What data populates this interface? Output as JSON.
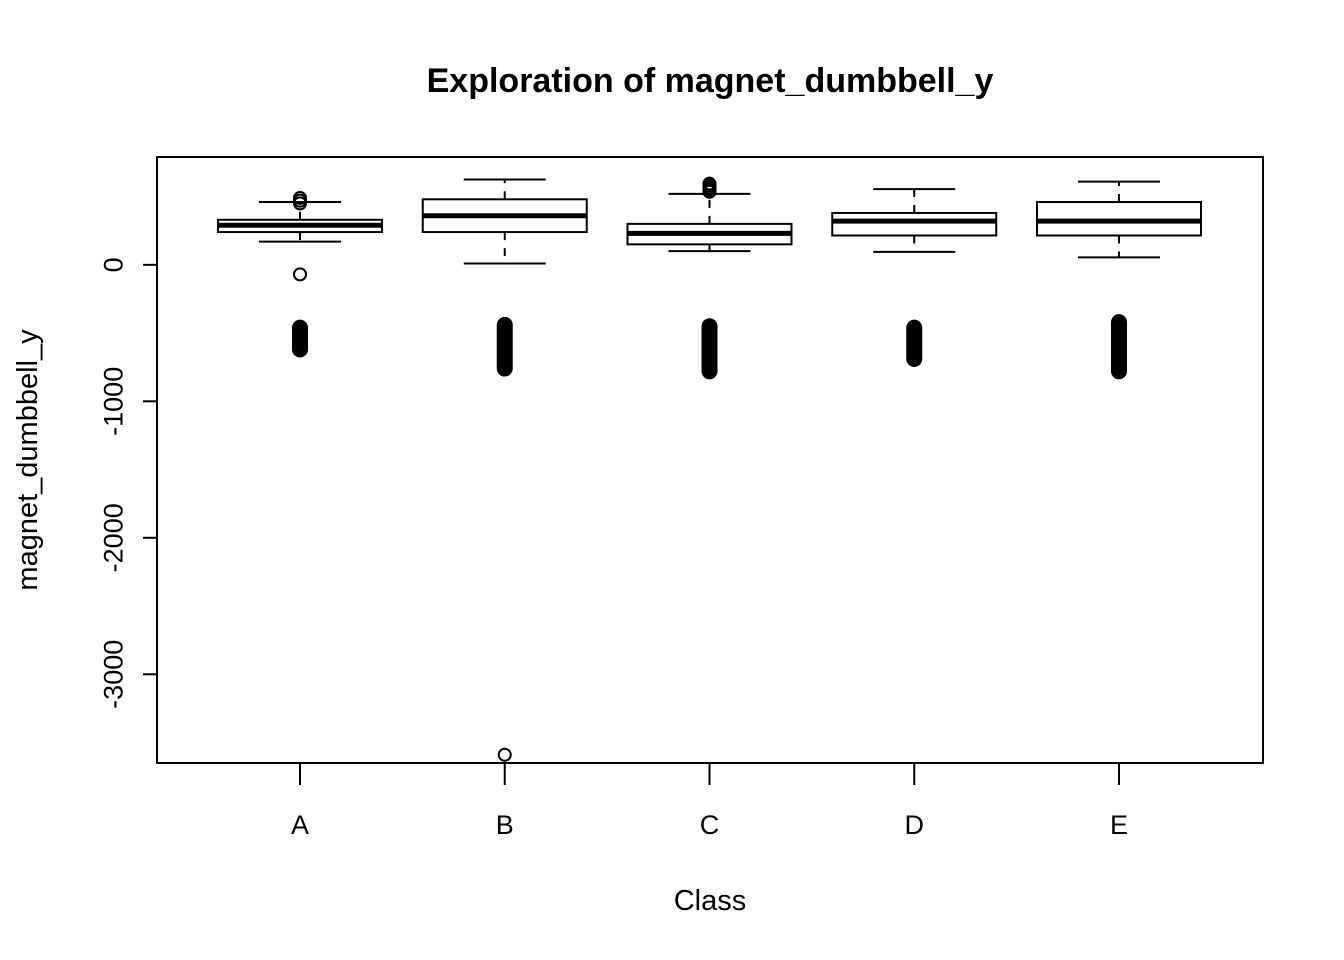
{
  "chart_data": {
    "type": "boxplot",
    "title": "Exploration of  magnet_dumbbell_y",
    "xlabel": "Class",
    "ylabel": "magnet_dumbbell_y",
    "ylim": [
      -3650,
      790
    ],
    "yticks": [
      0,
      -1000,
      -2000,
      -3000
    ],
    "categories": [
      "A",
      "B",
      "C",
      "D",
      "E"
    ],
    "series": [
      {
        "category": "A",
        "whisker_low": 170,
        "q1": 240,
        "median": 290,
        "q3": 330,
        "whisker_high": 460,
        "outliers": [
          490,
          470,
          450,
          -70
        ],
        "outlier_band": [
          -620,
          -460
        ]
      },
      {
        "category": "B",
        "whisker_low": 10,
        "q1": 240,
        "median": 360,
        "q3": 480,
        "whisker_high": 625,
        "outliers": [
          -3590
        ],
        "outlier_band": [
          -760,
          -440
        ]
      },
      {
        "category": "C",
        "whisker_low": 100,
        "q1": 150,
        "median": 230,
        "q3": 300,
        "whisker_high": 520,
        "outliers": [
          595,
          580,
          565,
          550,
          535
        ],
        "outlier_band": [
          -780,
          -450
        ]
      },
      {
        "category": "D",
        "whisker_low": 95,
        "q1": 215,
        "median": 320,
        "q3": 380,
        "whisker_high": 555,
        "outliers": [],
        "outlier_band": [
          -690,
          -460
        ]
      },
      {
        "category": "E",
        "whisker_low": 55,
        "q1": 215,
        "median": 320,
        "q3": 460,
        "whisker_high": 610,
        "outliers": [],
        "outlier_band": [
          -780,
          -420
        ]
      }
    ]
  }
}
